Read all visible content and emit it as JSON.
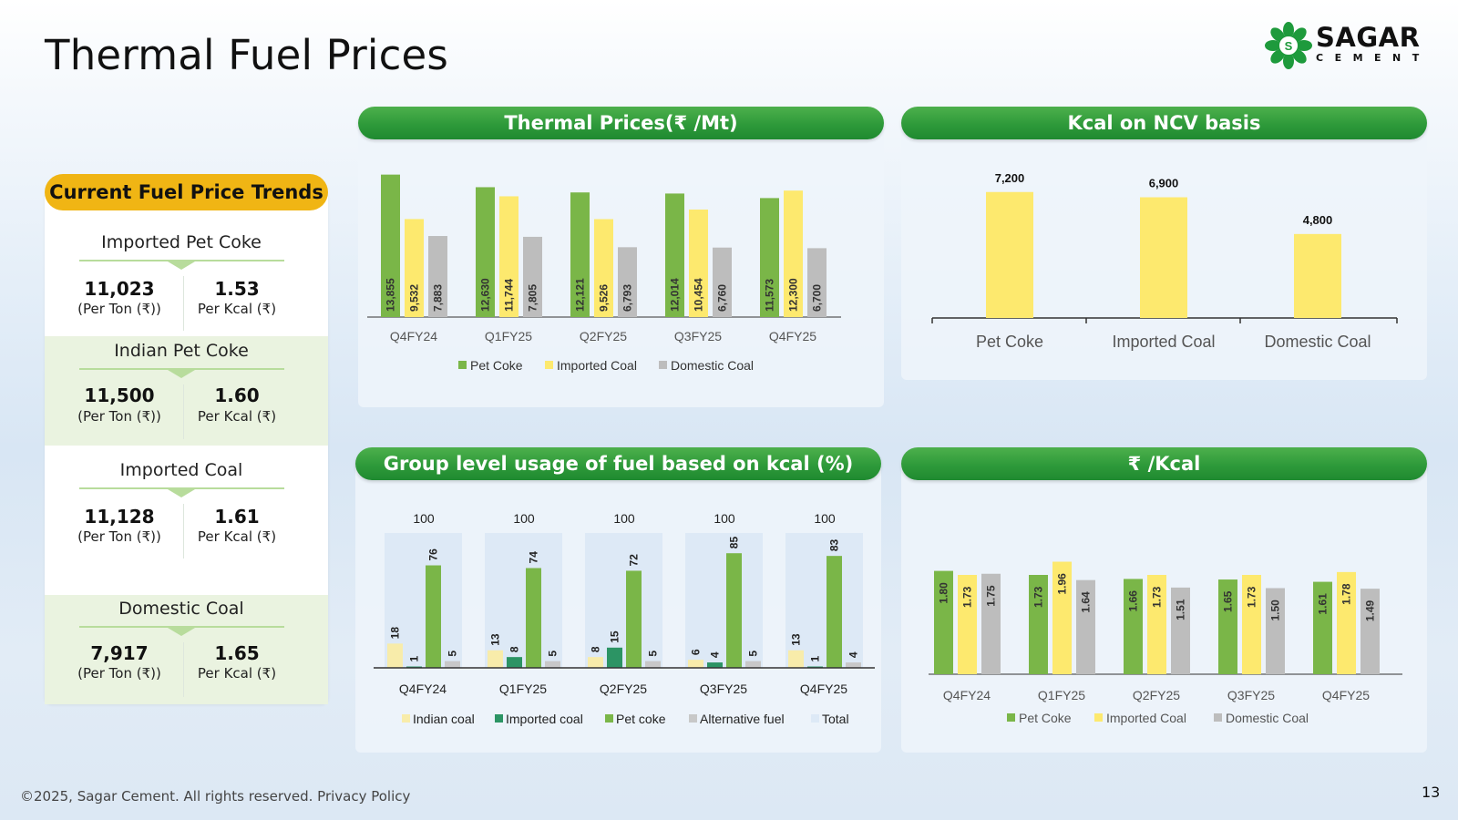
{
  "page": {
    "title": "Thermal Fuel Prices",
    "footer": "©2025, Sagar Cement. All rights reserved. Privacy Policy",
    "page_number": "13"
  },
  "logo": {
    "name": "SAGAR",
    "sub": "CEMENT",
    "emblem": "S"
  },
  "colors": {
    "green_dark": "#2e9a3a",
    "pet_coke": "#7ab648",
    "imported_coal": "#fde96e",
    "domestic_coal": "#bdbdbd",
    "indian_coal": "#f8ecaa",
    "imported_coal_usage": "#2c9464",
    "alternative_fuel": "#c8c8c8",
    "total": "#dde9f6",
    "badge": "#f0b514"
  },
  "trends": {
    "title": "Current Fuel Price Trends",
    "items": [
      {
        "name": "Imported Pet Coke",
        "per_ton": "11,023",
        "per_ton_label": "(Per Ton (₹))",
        "per_kcal": "1.53",
        "per_kcal_label": "Per Kcal (₹)"
      },
      {
        "name": "Indian Pet Coke",
        "per_ton": "11,500",
        "per_ton_label": "(Per Ton (₹))",
        "per_kcal": "1.60",
        "per_kcal_label": "Per Kcal (₹)"
      },
      {
        "name": "Imported Coal",
        "per_ton": "11,128",
        "per_ton_label": "(Per Ton (₹))",
        "per_kcal": "1.61",
        "per_kcal_label": "Per Kcal (₹)"
      },
      {
        "name": "Domestic Coal",
        "per_ton": "7,917",
        "per_ton_label": "(Per Ton (₹))",
        "per_kcal": "1.65",
        "per_kcal_label": "Per Kcal (₹)"
      }
    ]
  },
  "chart_data": [
    {
      "type": "bar",
      "title": "Thermal Prices(₹ /Mt)",
      "categories": [
        "Q4FY24",
        "Q1FY25",
        "Q2FY25",
        "Q3FY25",
        "Q4FY25"
      ],
      "series": [
        {
          "name": "Pet Coke",
          "values": [
            13855,
            12630,
            12121,
            12014,
            11573
          ],
          "labels": [
            "13,855",
            "12,630",
            "12,121",
            "12,014",
            "11,573"
          ]
        },
        {
          "name": "Imported Coal",
          "values": [
            9532,
            11744,
            9526,
            10454,
            12300
          ],
          "labels": [
            "9,532",
            "11,744",
            "9,526",
            "10,454",
            "12,300"
          ]
        },
        {
          "name": "Domestic Coal",
          "values": [
            7883,
            7805,
            6793,
            6760,
            6700
          ],
          "labels": [
            "7,883",
            "7,805",
            "6,793",
            "6,760",
            "6,700"
          ]
        }
      ],
      "ylim": [
        0,
        14000
      ],
      "legend": "bottom"
    },
    {
      "type": "bar",
      "title": "Kcal on NCV basis",
      "categories": [
        "Pet Coke",
        "Imported Coal",
        "Domestic Coal"
      ],
      "values": [
        7200,
        6900,
        4800
      ],
      "labels": [
        "7,200",
        "6,900",
        "4,800"
      ],
      "ylim": [
        0,
        7500
      ]
    },
    {
      "type": "bar",
      "title": "Group level usage of fuel based on kcal (%)",
      "categories": [
        "Q4FY24",
        "Q1FY25",
        "Q2FY25",
        "Q3FY25",
        "Q4FY25"
      ],
      "series": [
        {
          "name": "Indian coal",
          "values": [
            18,
            13,
            8,
            6,
            13
          ]
        },
        {
          "name": "Imported coal",
          "values": [
            1,
            8,
            15,
            4,
            1
          ]
        },
        {
          "name": "Pet coke",
          "values": [
            76,
            74,
            72,
            85,
            83
          ]
        },
        {
          "name": "Alternative fuel",
          "values": [
            5,
            5,
            5,
            5,
            4
          ]
        },
        {
          "name": "Total",
          "values": [
            100,
            100,
            100,
            100,
            100
          ]
        }
      ],
      "ylim": [
        0,
        100
      ],
      "legend": "bottom"
    },
    {
      "type": "bar",
      "title": "₹ /Kcal",
      "categories": [
        "Q4FY24",
        "Q1FY25",
        "Q2FY25",
        "Q3FY25",
        "Q4FY25"
      ],
      "series": [
        {
          "name": "Pet Coke",
          "values": [
            1.8,
            1.73,
            1.66,
            1.65,
            1.61
          ],
          "labels": [
            "1.80",
            "1.73",
            "1.66",
            "1.65",
            "1.61"
          ]
        },
        {
          "name": "Imported Coal",
          "values": [
            1.73,
            1.96,
            1.73,
            1.73,
            1.78
          ],
          "labels": [
            "1.73",
            "1.96",
            "1.73",
            "1.73",
            "1.78"
          ]
        },
        {
          "name": "Domestic Coal",
          "values": [
            1.75,
            1.64,
            1.51,
            1.5,
            1.49
          ],
          "labels": [
            "1.75",
            "1.64",
            "1.51",
            "1.50",
            "1.49"
          ]
        }
      ],
      "ylim": [
        0,
        2.0
      ],
      "legend": "bottom"
    }
  ]
}
